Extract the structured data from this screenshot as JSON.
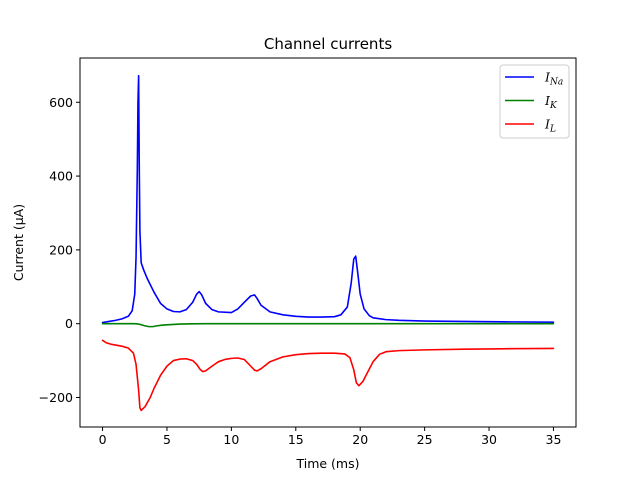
{
  "chart_data": {
    "type": "line",
    "title": "Channel currents",
    "xlabel": "Time (ms)",
    "ylabel": "Current (µA)",
    "xlim": [
      -1.75,
      36.75
    ],
    "ylim": [
      -280,
      720
    ],
    "xticks": [
      0,
      5,
      10,
      15,
      20,
      25,
      30,
      35
    ],
    "xtick_labels": [
      "0",
      "5",
      "10",
      "15",
      "20",
      "25",
      "30",
      "35"
    ],
    "yticks": [
      -200,
      0,
      200,
      400,
      600
    ],
    "ytick_labels": [
      "−200",
      "0",
      "200",
      "400",
      "600"
    ],
    "grid": false,
    "legend_position": "top-right",
    "series": [
      {
        "name": "I_Na",
        "label_main": "I",
        "label_sub": "Na",
        "color": "#0000ff",
        "x": [
          0,
          0.5,
          1.0,
          1.5,
          2.0,
          2.3,
          2.5,
          2.6,
          2.7,
          2.75,
          2.8,
          2.85,
          2.9,
          3.0,
          3.2,
          3.5,
          4.0,
          4.5,
          5.0,
          5.5,
          6.0,
          6.5,
          7.0,
          7.3,
          7.5,
          7.7,
          8.0,
          8.5,
          9.0,
          10.0,
          10.5,
          11.0,
          11.5,
          11.8,
          12.0,
          12.3,
          13.0,
          14.0,
          15.0,
          16.0,
          17.0,
          18.0,
          18.5,
          19.0,
          19.3,
          19.5,
          19.65,
          19.8,
          20.0,
          20.3,
          20.7,
          21.0,
          22.0,
          23.0,
          25.0,
          28.0,
          31.0,
          35.0
        ],
        "y": [
          3,
          6,
          9,
          13,
          20,
          35,
          80,
          180,
          420,
          600,
          672,
          430,
          250,
          165,
          145,
          120,
          85,
          55,
          40,
          33,
          32,
          38,
          58,
          80,
          87,
          78,
          55,
          38,
          32,
          30,
          40,
          58,
          75,
          78,
          68,
          50,
          32,
          24,
          20,
          18,
          18,
          19,
          24,
          45,
          110,
          175,
          183,
          140,
          80,
          40,
          22,
          16,
          11,
          9,
          7,
          6,
          5,
          4
        ]
      },
      {
        "name": "I_K",
        "label_main": "I",
        "label_sub": "K",
        "color": "#008000",
        "x": [
          0,
          1.0,
          2.0,
          2.5,
          2.8,
          3.0,
          3.3,
          3.6,
          3.9,
          4.2,
          4.6,
          5.0,
          5.5,
          6.0,
          7.0,
          8.0,
          10.0,
          15.0,
          20.0,
          25.0,
          30.0,
          35.0
        ],
        "y": [
          0,
          0,
          0,
          0,
          -1,
          -3,
          -6,
          -8,
          -8,
          -6,
          -4,
          -3,
          -2,
          -1,
          -0.5,
          0,
          0,
          0,
          0,
          0,
          0,
          0
        ]
      },
      {
        "name": "I_L",
        "label_main": "I",
        "label_sub": "L",
        "color": "#ff0000",
        "x": [
          0,
          0.3,
          0.7,
          1.0,
          1.5,
          2.0,
          2.4,
          2.6,
          2.8,
          2.9,
          3.0,
          3.3,
          3.7,
          4.0,
          4.5,
          5.0,
          5.5,
          6.0,
          6.5,
          7.0,
          7.3,
          7.6,
          7.8,
          8.0,
          8.5,
          9.0,
          9.5,
          10.0,
          10.5,
          11.0,
          11.5,
          11.8,
          12.0,
          12.3,
          13.0,
          14.0,
          15.0,
          16.0,
          17.0,
          18.0,
          18.8,
          19.2,
          19.5,
          19.7,
          19.9,
          20.2,
          20.6,
          21.0,
          21.5,
          22.0,
          23.0,
          25.0,
          28.0,
          31.0,
          35.0
        ],
        "y": [
          -45,
          -52,
          -56,
          -58,
          -61,
          -66,
          -80,
          -110,
          -180,
          -228,
          -235,
          -225,
          -200,
          -175,
          -140,
          -115,
          -100,
          -96,
          -95,
          -100,
          -110,
          -125,
          -130,
          -128,
          -115,
          -103,
          -97,
          -94,
          -93,
          -97,
          -115,
          -126,
          -128,
          -122,
          -103,
          -90,
          -84,
          -81,
          -80,
          -80,
          -82,
          -92,
          -125,
          -160,
          -168,
          -157,
          -130,
          -103,
          -83,
          -76,
          -73,
          -71,
          -69,
          -68,
          -67
        ]
      }
    ]
  }
}
